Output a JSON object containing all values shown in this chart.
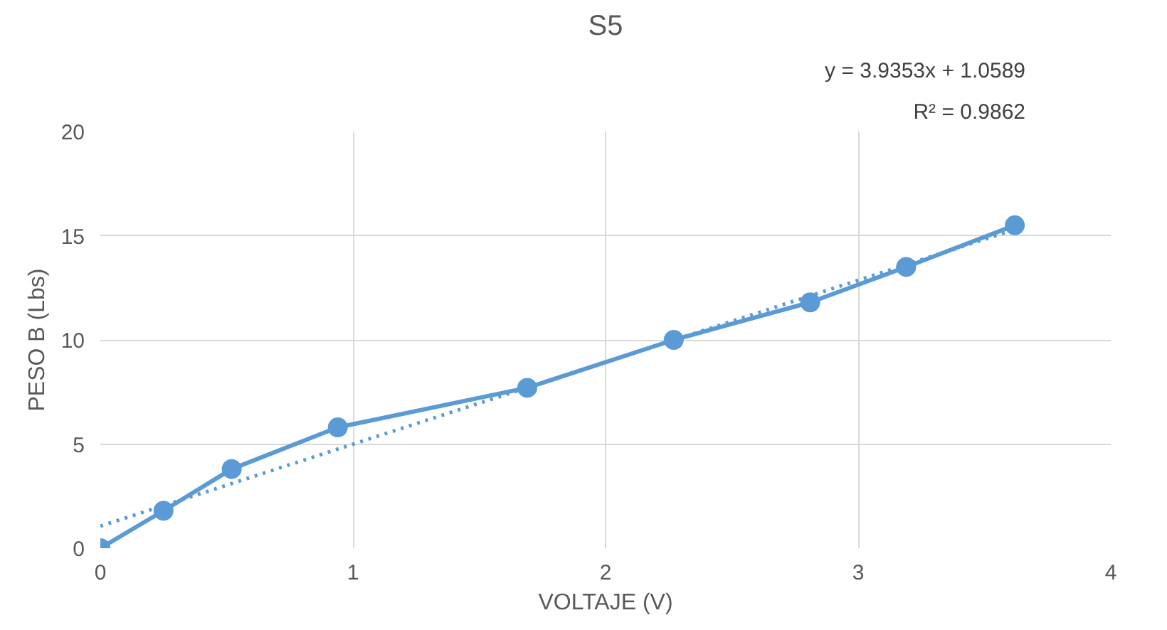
{
  "chart_data": {
    "type": "line",
    "title": "S5",
    "xlabel": "VOLTAJE (V)",
    "ylabel": "PESO B (Lbs)",
    "annotations": [
      "y = 3.9353x + 1.0589",
      "R² = 0.9862"
    ],
    "xlim": [
      0,
      4
    ],
    "xticks": [
      0,
      1,
      2,
      3,
      4
    ],
    "ylim": [
      0,
      20
    ],
    "yticks": [
      0,
      5,
      10,
      15,
      20
    ],
    "grid": true,
    "marker": "circle",
    "series": [
      {
        "color": "#5b9bd5",
        "line_style": "solid",
        "x": [
          0,
          0.25,
          0.52,
          0.94,
          1.69,
          2.27,
          2.81,
          3.19,
          3.62
        ],
        "values": [
          0,
          1.8,
          3.8,
          5.8,
          7.7,
          10.0,
          11.8,
          13.5,
          15.5
        ]
      },
      {
        "type": "line",
        "color": "#5b9bd5",
        "marker": "none",
        "line_style": "dotted",
        "x": [
          0,
          3.62
        ],
        "values": [
          1.06,
          15.3
        ]
      }
    ]
  }
}
